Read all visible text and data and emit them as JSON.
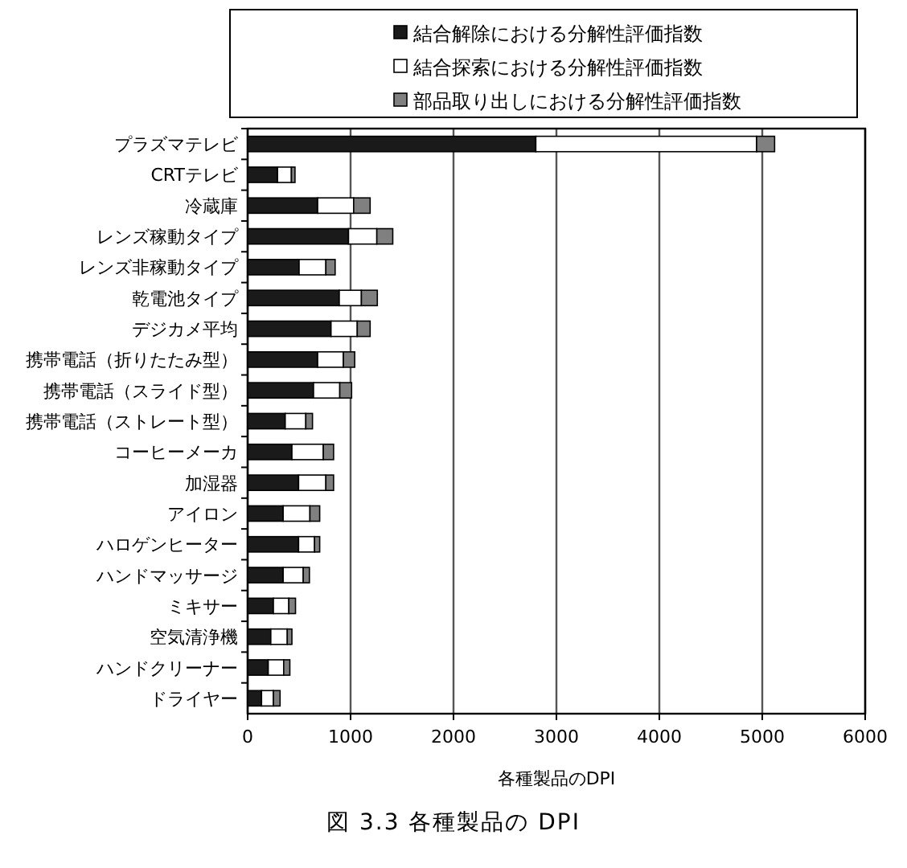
{
  "chart_data": {
    "type": "bar",
    "orientation": "horizontal",
    "stacked": true,
    "xlabel": "各種製品のDPI",
    "categories": [
      "プラズマテレビ",
      "CRTテレビ",
      "冷蔵庫",
      "レンズ稼動タイプ",
      "レンズ非稼動タイプ",
      "乾電池タイプ",
      "デジカメ平均",
      "携帯電話（折りたたみ型）",
      "携帯電話（スライド型）",
      "携帯電話（ストレート型）",
      "コーヒーメーカ",
      "加湿器",
      "アイロン",
      "ハロゲンヒーター",
      "ハンドマッサージ",
      "ミキサー",
      "空気清浄機",
      "ハンドクリーナー",
      "ドライヤー"
    ],
    "series": [
      {
        "name": "結合解除における分解性評価指数",
        "color": "#1a1a1a",
        "values": [
          2800,
          290,
          680,
          980,
          500,
          890,
          810,
          680,
          640,
          365,
          430,
          495,
          345,
          495,
          345,
          250,
          225,
          200,
          135
        ]
      },
      {
        "name": "結合探索における分解性評価指数",
        "color": "#ffffff",
        "values": [
          2145,
          135,
          350,
          275,
          260,
          215,
          255,
          250,
          255,
          200,
          305,
          265,
          260,
          155,
          195,
          150,
          160,
          150,
          115
        ]
      },
      {
        "name": "部品取り出しにおける分解性評価指数",
        "color": "#808080",
        "values": [
          175,
          35,
          160,
          155,
          90,
          155,
          125,
          110,
          115,
          65,
          100,
          75,
          95,
          50,
          60,
          65,
          45,
          60,
          65
        ]
      }
    ],
    "xlim": [
      0,
      6000
    ],
    "xticks": [
      0,
      1000,
      2000,
      3000,
      4000,
      5000,
      6000
    ],
    "grid": "x",
    "legend": "top",
    "annotations": [
      "図 3.3 各種製品の DPI"
    ]
  }
}
